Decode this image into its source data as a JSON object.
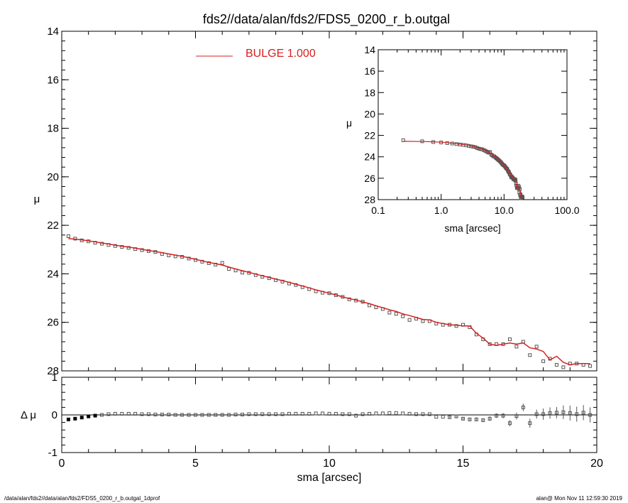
{
  "chart_data": {
    "type": "scatter",
    "title": "fds2//data/alan/fds2/FDS5_0200_r_b.outgal",
    "footer_left": "/data/alan/fds2//data/alan/fds2/FDS5_0200_r_b.outgal_1dprof",
    "footer_right": "alan@  Mon Nov 11 12:59:30 2019",
    "colors": {
      "model": "#d62020",
      "data": "#555555",
      "axes": "#000000"
    },
    "main": {
      "ylabel": "μ",
      "xlim": [
        0,
        20
      ],
      "ylim": [
        28,
        14
      ],
      "yticks": [
        "14",
        "16",
        "18",
        "20",
        "22",
        "24",
        "26",
        "28"
      ],
      "legend": {
        "label": "BULGE  1.000",
        "position": "top"
      },
      "data_x": [
        0.25,
        0.5,
        0.75,
        1.0,
        1.25,
        1.5,
        1.75,
        2.0,
        2.25,
        2.5,
        2.75,
        3.0,
        3.25,
        3.5,
        3.75,
        4.0,
        4.25,
        4.5,
        4.75,
        5.0,
        5.25,
        5.5,
        5.75,
        6.0,
        6.25,
        6.5,
        6.75,
        7.0,
        7.25,
        7.5,
        7.75,
        8.0,
        8.25,
        8.5,
        8.75,
        9.0,
        9.25,
        9.5,
        9.75,
        10.0,
        10.25,
        10.5,
        10.75,
        11.0,
        11.25,
        11.5,
        11.75,
        12.0,
        12.25,
        12.5,
        12.75,
        13.0,
        13.25,
        13.5,
        13.75,
        14.0,
        14.25,
        14.5,
        14.75,
        15.0,
        15.25,
        15.5,
        15.75,
        16.0,
        16.25,
        16.5,
        16.75,
        17.0,
        17.25,
        17.5,
        17.75,
        18.0,
        18.25,
        18.5,
        18.75,
        19.0,
        19.25,
        19.5,
        19.75
      ],
      "data_y": [
        22.45,
        22.55,
        22.62,
        22.66,
        22.72,
        22.76,
        22.81,
        22.85,
        22.89,
        22.93,
        22.98,
        23.02,
        23.06,
        23.1,
        23.18,
        23.24,
        23.28,
        23.3,
        23.37,
        23.43,
        23.5,
        23.56,
        23.62,
        23.55,
        23.8,
        23.86,
        23.95,
        23.96,
        24.05,
        24.12,
        24.18,
        24.26,
        24.32,
        24.4,
        24.46,
        24.55,
        24.63,
        24.72,
        24.78,
        24.8,
        24.88,
        24.95,
        25.05,
        25.1,
        25.15,
        25.3,
        25.38,
        25.45,
        25.6,
        25.65,
        25.75,
        25.9,
        25.85,
        25.95,
        25.95,
        26.05,
        26.1,
        26.1,
        26.15,
        26.1,
        26.2,
        26.5,
        26.7,
        26.9,
        26.9,
        26.9,
        26.7,
        27.0,
        26.8,
        27.35,
        27.0,
        27.6,
        27.5,
        27.75,
        27.85,
        27.7,
        27.7,
        27.75,
        27.8
      ],
      "model_x": [
        0.25,
        0.5,
        0.75,
        1.0,
        1.25,
        1.5,
        1.75,
        2.0,
        2.25,
        2.5,
        2.75,
        3.0,
        3.25,
        3.5,
        3.75,
        4.0,
        4.25,
        4.5,
        4.75,
        5.0,
        5.25,
        5.5,
        5.75,
        6.0,
        6.25,
        6.5,
        6.75,
        7.0,
        7.25,
        7.5,
        7.75,
        8.0,
        8.25,
        8.5,
        8.75,
        9.0,
        9.25,
        9.5,
        9.75,
        10.0,
        10.25,
        10.5,
        10.75,
        11.0,
        11.25,
        11.5,
        11.75,
        12.0,
        12.25,
        12.5,
        12.75,
        13.0,
        13.25,
        13.5,
        13.75,
        14.0,
        14.25,
        14.5,
        14.75,
        15.0,
        15.25,
        15.5,
        15.75,
        16.0,
        16.25,
        16.5,
        16.75,
        17.0,
        17.25,
        17.5,
        17.75,
        18.0,
        18.25,
        18.5,
        18.75,
        19.0,
        19.25,
        19.5,
        19.75
      ],
      "model_y": [
        22.55,
        22.57,
        22.6,
        22.64,
        22.68,
        22.73,
        22.77,
        22.82,
        22.86,
        22.9,
        22.94,
        22.99,
        23.04,
        23.08,
        23.13,
        23.18,
        23.23,
        23.28,
        23.34,
        23.4,
        23.47,
        23.53,
        23.58,
        23.64,
        23.72,
        23.8,
        23.87,
        23.94,
        24.01,
        24.08,
        24.15,
        24.22,
        24.28,
        24.35,
        24.43,
        24.5,
        24.58,
        24.66,
        24.73,
        24.8,
        24.87,
        24.95,
        25.02,
        25.08,
        25.16,
        25.23,
        25.32,
        25.4,
        25.48,
        25.55,
        25.65,
        25.72,
        25.8,
        25.88,
        25.9,
        26.0,
        26.05,
        26.1,
        26.12,
        26.15,
        26.15,
        26.45,
        26.65,
        26.9,
        26.95,
        26.9,
        26.85,
        26.9,
        26.85,
        27.05,
        27.1,
        27.2,
        27.55,
        27.4,
        27.65,
        27.75,
        27.7,
        27.7,
        27.7
      ]
    },
    "residual": {
      "ylabel": "Δ μ",
      "xlabel": "sma [arcsec]",
      "xlim": [
        0,
        20
      ],
      "ylim": [
        -1,
        1
      ],
      "xticks": [
        "0",
        "5",
        "10",
        "15",
        "20"
      ],
      "yticks": [
        "1",
        "0",
        "-1"
      ],
      "x": [
        0.25,
        0.5,
        0.75,
        1.0,
        1.25,
        1.5,
        1.75,
        2.0,
        2.25,
        2.5,
        2.75,
        3.0,
        3.25,
        3.5,
        3.75,
        4.0,
        4.25,
        4.5,
        4.75,
        5.0,
        5.25,
        5.5,
        5.75,
        6.0,
        6.25,
        6.5,
        6.75,
        7.0,
        7.25,
        7.5,
        7.75,
        8.0,
        8.25,
        8.5,
        8.75,
        9.0,
        9.25,
        9.5,
        9.75,
        10.0,
        10.25,
        10.5,
        10.75,
        11.0,
        11.25,
        11.5,
        11.75,
        12.0,
        12.25,
        12.5,
        12.75,
        13.0,
        13.25,
        13.5,
        13.75,
        14.0,
        14.25,
        14.5,
        14.75,
        15.0,
        15.25,
        15.5,
        15.75,
        16.0,
        16.25,
        16.5,
        16.75,
        17.0,
        17.25,
        17.5,
        17.75,
        18.0,
        18.25,
        18.5,
        18.75,
        19.0,
        19.25,
        19.5,
        19.75
      ],
      "y": [
        -0.12,
        -0.1,
        -0.07,
        -0.04,
        -0.02,
        0.0,
        0.02,
        0.03,
        0.03,
        0.03,
        0.03,
        0.02,
        0.02,
        0.01,
        0.01,
        0.01,
        0.0,
        0.0,
        0.0,
        0.0,
        0.0,
        0.0,
        0.0,
        0.0,
        0.0,
        0.01,
        0.01,
        0.02,
        0.02,
        0.02,
        0.02,
        0.02,
        0.02,
        0.03,
        0.03,
        0.03,
        0.03,
        0.04,
        0.04,
        0.03,
        0.03,
        0.02,
        0.02,
        -0.02,
        0.02,
        0.03,
        0.04,
        0.04,
        0.05,
        0.05,
        0.04,
        0.03,
        0.02,
        0.02,
        0.02,
        -0.05,
        -0.05,
        -0.06,
        -0.04,
        -0.1,
        -0.12,
        -0.12,
        -0.14,
        -0.1,
        -0.02,
        -0.02,
        -0.22,
        -0.03,
        0.2,
        -0.22,
        0.02,
        0.02,
        0.05,
        0.06,
        0.07,
        0.05,
        0.02,
        0.06,
        0.0
      ],
      "yerr": [
        0.01,
        0.01,
        0.01,
        0.01,
        0.01,
        0.01,
        0.01,
        0.01,
        0.01,
        0.01,
        0.01,
        0.01,
        0.01,
        0.01,
        0.01,
        0.01,
        0.01,
        0.01,
        0.01,
        0.01,
        0.01,
        0.01,
        0.01,
        0.01,
        0.01,
        0.01,
        0.01,
        0.01,
        0.01,
        0.01,
        0.01,
        0.01,
        0.01,
        0.01,
        0.01,
        0.01,
        0.01,
        0.01,
        0.01,
        0.01,
        0.01,
        0.01,
        0.01,
        0.01,
        0.01,
        0.01,
        0.01,
        0.01,
        0.01,
        0.01,
        0.01,
        0.01,
        0.01,
        0.01,
        0.01,
        0.02,
        0.02,
        0.03,
        0.03,
        0.04,
        0.04,
        0.05,
        0.05,
        0.06,
        0.06,
        0.07,
        0.08,
        0.09,
        0.1,
        0.12,
        0.12,
        0.15,
        0.15,
        0.15,
        0.18,
        0.2,
        0.2,
        0.2,
        0.2
      ]
    },
    "inset": {
      "ylabel": "μ",
      "xlabel": "sma [arcsec]",
      "xscale": "log",
      "xlim": [
        0.1,
        100
      ],
      "ylim": [
        28,
        14
      ],
      "xticks": [
        "0.1",
        "1.0",
        "10.0",
        "100.0"
      ],
      "yticks": [
        "14",
        "16",
        "18",
        "20",
        "22",
        "24",
        "26",
        "28"
      ]
    }
  }
}
